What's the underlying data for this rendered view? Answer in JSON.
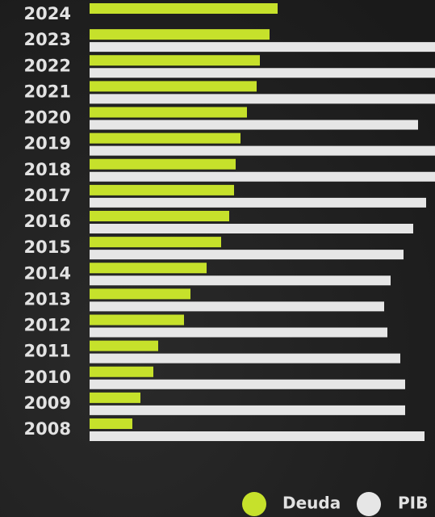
{
  "chart_data": {
    "type": "bar",
    "orientation": "horizontal",
    "categories": [
      "2024",
      "2023",
      "2022",
      "2021",
      "2020",
      "2019",
      "2018",
      "2017",
      "2016",
      "2015",
      "2014",
      "2013",
      "2012",
      "2011",
      "2010",
      "2009",
      "2008"
    ],
    "series": [
      {
        "name": "Deuda",
        "color": "#c6e12b",
        "values": [
          233,
          223,
          211,
          207,
          195,
          187,
          181,
          179,
          173,
          163,
          145,
          125,
          117,
          85,
          79,
          63,
          53
        ]
      },
      {
        "name": "PIB",
        "color": "#e6e6e6",
        "values": [
          null,
          440,
          440,
          440,
          407,
          440,
          440,
          417,
          401,
          389,
          373,
          365,
          369,
          385,
          391,
          391,
          415
        ]
      }
    ],
    "xlim": [
      0,
      428
    ],
    "legend": "bottom-right"
  }
}
